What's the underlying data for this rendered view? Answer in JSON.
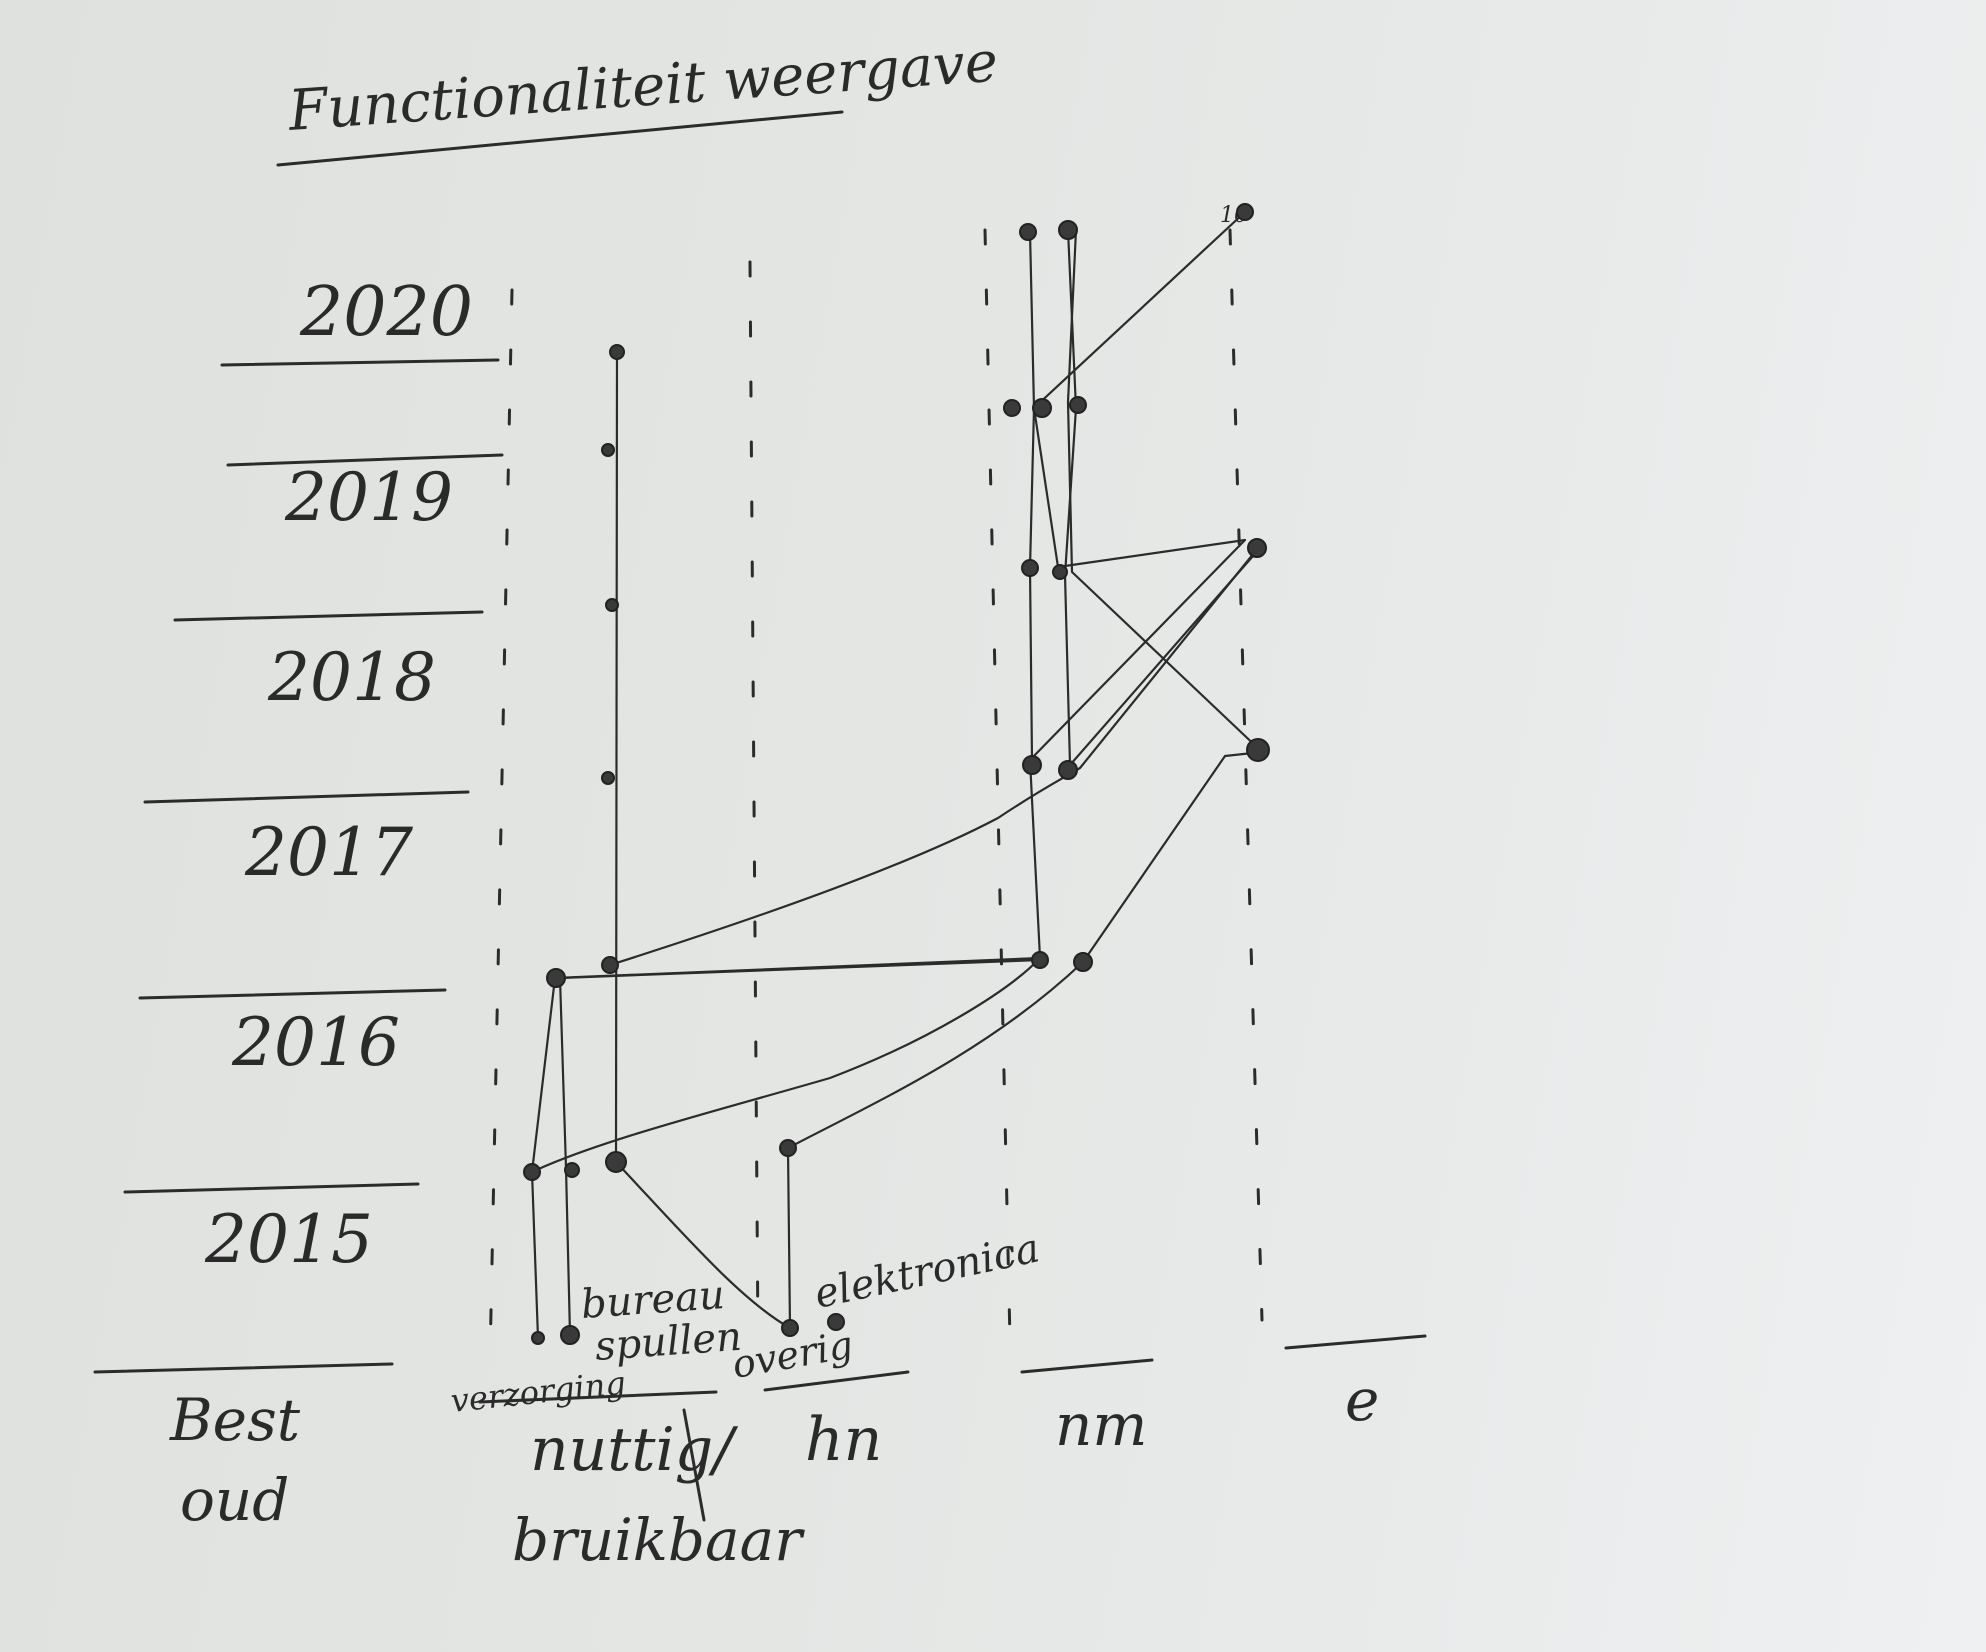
{
  "title": "Functionaliteit weergave",
  "years": [
    "2020",
    "2019",
    "2018",
    "2017",
    "2016",
    "2015"
  ],
  "columns": {
    "best_oud": [
      "Best",
      "oud"
    ],
    "nuttig": [
      "nuttig/",
      "bruikbaar"
    ],
    "hn": "hn",
    "nm": "nm",
    "e": "e"
  },
  "categories": {
    "verzorging": "verzorging",
    "bureau": "bureau",
    "spullen": "spullen",
    "overig": "overig",
    "elektronica": "elektronica"
  },
  "top_mark": "10"
}
